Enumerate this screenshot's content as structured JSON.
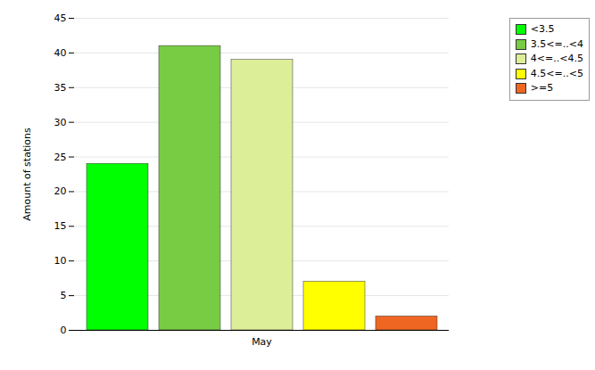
{
  "chart_data": {
    "type": "bar",
    "ylabel": "Amount of stations",
    "categories": [
      "May"
    ],
    "series": [
      {
        "name": "<3.5",
        "color": "#00ff00",
        "values": [
          24
        ]
      },
      {
        "name": "3.5<=..<4",
        "color": "#77cc44",
        "values": [
          41
        ]
      },
      {
        "name": "4<=..<4.5",
        "color": "#ddee99",
        "values": [
          39
        ]
      },
      {
        "name": "4.5<=..<5",
        "color": "#ffff00",
        "values": [
          7
        ]
      },
      {
        "name": ">=5",
        "color": "#ee6622",
        "values": [
          2
        ]
      }
    ],
    "ylim": [
      0,
      45
    ],
    "yticks": [
      0,
      5,
      10,
      15,
      20,
      25,
      30,
      35,
      40,
      45
    ],
    "grid": true,
    "legend": "upper right"
  }
}
